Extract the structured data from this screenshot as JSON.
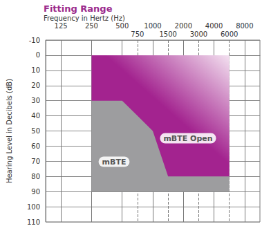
{
  "chart_data": {
    "type": "area",
    "title": "Fitting Range",
    "subtitle": "Frequency in Hertz (Hz)",
    "y_label": "Hearing Level in Decibels (dB)",
    "categories": [
      null,
      125,
      null,
      250,
      null,
      500,
      750,
      1000,
      1500,
      2000,
      3000,
      4000,
      6000,
      8000,
      null
    ],
    "ylim": [
      -10,
      110
    ],
    "yticks": [
      -10,
      0,
      10,
      20,
      30,
      40,
      50,
      60,
      70,
      80,
      90,
      100,
      110
    ],
    "grid": true,
    "series": [
      {
        "name": "mBTE",
        "color": "#9d9d9f",
        "top": [
          null,
          null,
          null,
          0,
          0,
          0,
          0,
          0,
          0,
          0,
          0,
          0,
          0,
          null,
          null
        ],
        "bottom": [
          null,
          null,
          null,
          90,
          90,
          90,
          90,
          90,
          90,
          90,
          90,
          90,
          90,
          null,
          null
        ]
      },
      {
        "name": "mBTE Open",
        "color": "#a3238f",
        "top": [
          null,
          null,
          null,
          0,
          0,
          0,
          0,
          0,
          0,
          0,
          0,
          0,
          0,
          null,
          null
        ],
        "bottom": [
          null,
          null,
          null,
          30,
          30,
          30,
          40,
          50,
          80,
          80,
          80,
          80,
          80,
          null,
          null
        ]
      }
    ]
  }
}
